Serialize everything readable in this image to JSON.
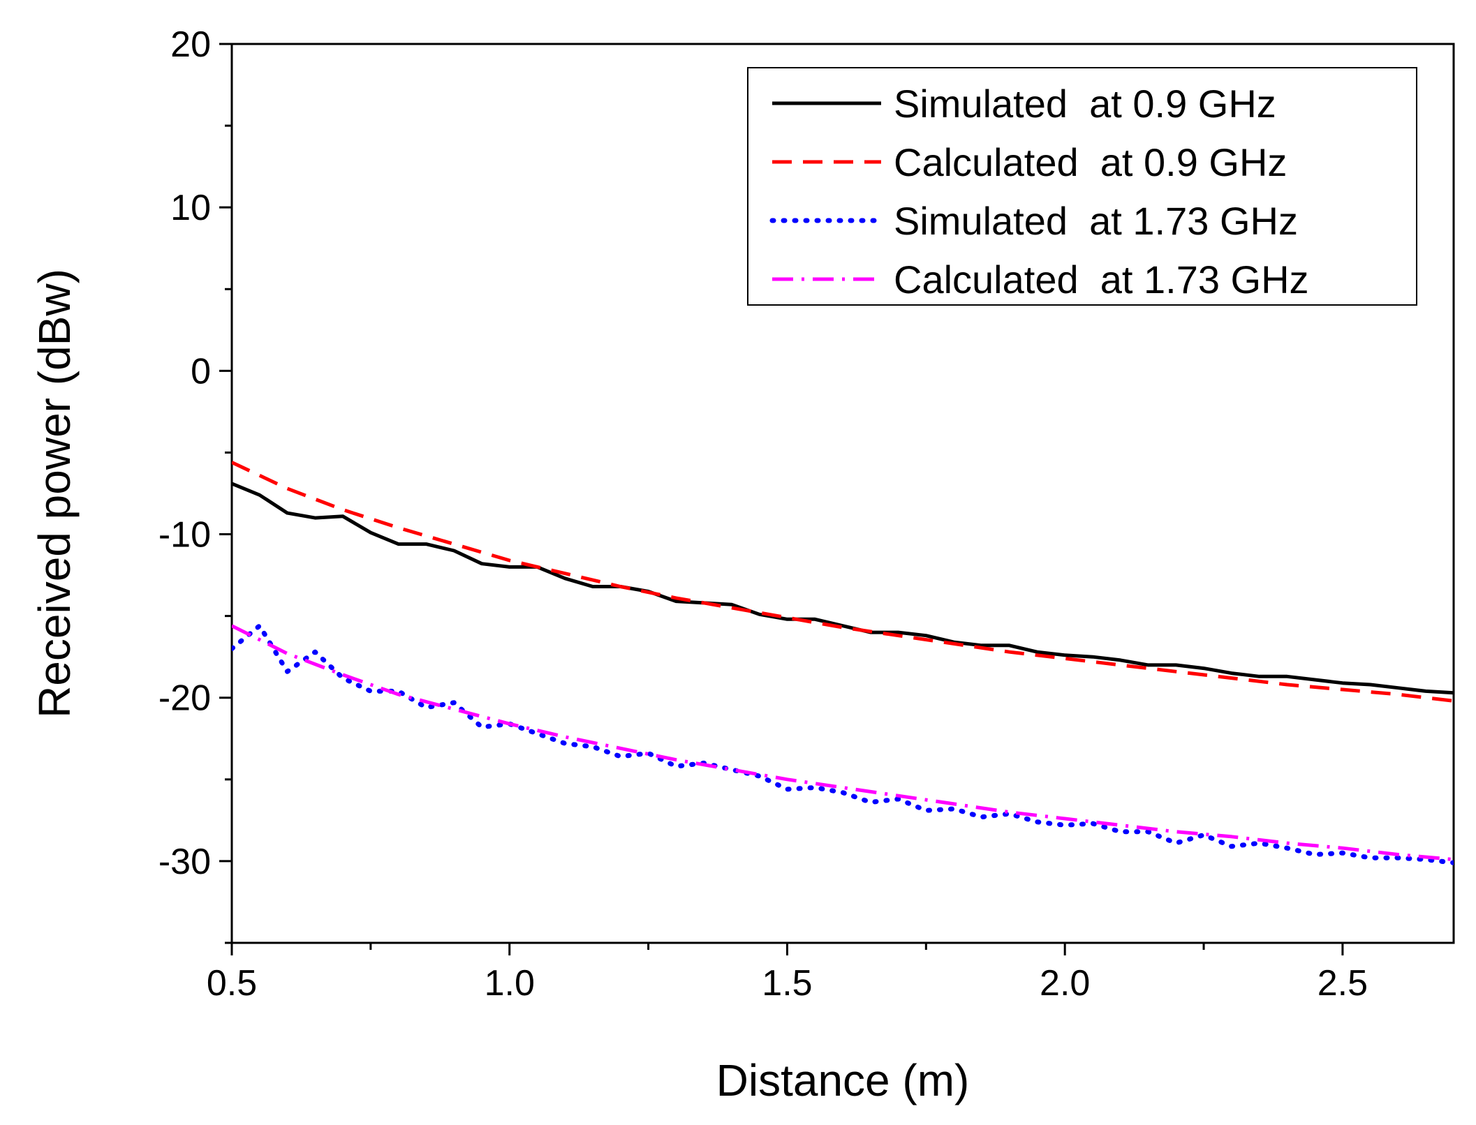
{
  "chart_data": {
    "type": "line",
    "title": "",
    "xlabel": "Distance (m)",
    "ylabel": "Received power (dBw)",
    "xlim": [
      0.5,
      2.7
    ],
    "ylim": [
      -35,
      20
    ],
    "xticks": [
      0.5,
      1.0,
      1.5,
      2.0,
      2.5
    ],
    "xtick_labels": [
      "0.5",
      "1.0",
      "1.5",
      "2.0",
      "2.5"
    ],
    "xminor": [
      0.75,
      1.25,
      1.75,
      2.25
    ],
    "yticks": [
      -30,
      -20,
      -10,
      0,
      10,
      20
    ],
    "ytick_labels": [
      "-30",
      "-20",
      "-10",
      "0",
      "10",
      "20"
    ],
    "yminor": [
      -35,
      -25,
      -15,
      -5,
      5,
      15
    ],
    "grid": false,
    "legend_position": "top-right",
    "series": [
      {
        "name": "Simulated  at 0.9 GHz",
        "color": "#000000",
        "style": "solid",
        "x": [
          0.5,
          0.55,
          0.6,
          0.65,
          0.7,
          0.75,
          0.8,
          0.85,
          0.9,
          0.95,
          1.0,
          1.05,
          1.1,
          1.15,
          1.2,
          1.25,
          1.3,
          1.35,
          1.4,
          1.45,
          1.5,
          1.55,
          1.6,
          1.65,
          1.7,
          1.75,
          1.8,
          1.85,
          1.9,
          1.95,
          2.0,
          2.05,
          2.1,
          2.15,
          2.2,
          2.25,
          2.3,
          2.35,
          2.4,
          2.45,
          2.5,
          2.55,
          2.6,
          2.65,
          2.7
        ],
        "y": [
          -6.9,
          -7.6,
          -8.7,
          -9.0,
          -8.9,
          -9.9,
          -10.6,
          -10.6,
          -11.0,
          -11.8,
          -12.0,
          -12.0,
          -12.7,
          -13.2,
          -13.2,
          -13.5,
          -14.1,
          -14.2,
          -14.3,
          -14.9,
          -15.2,
          -15.2,
          -15.6,
          -16.0,
          -16.0,
          -16.2,
          -16.6,
          -16.8,
          -16.8,
          -17.2,
          -17.4,
          -17.5,
          -17.7,
          -18.0,
          -18.0,
          -18.2,
          -18.5,
          -18.7,
          -18.7,
          -18.9,
          -19.1,
          -19.2,
          -19.4,
          -19.6,
          -19.7
        ]
      },
      {
        "name": "Calculated  at 0.9 GHz",
        "color": "#ff0000",
        "style": "dashed",
        "x": [
          0.5,
          0.6,
          0.7,
          0.8,
          0.9,
          1.0,
          1.1,
          1.2,
          1.3,
          1.4,
          1.5,
          1.6,
          1.7,
          1.8,
          1.9,
          2.0,
          2.1,
          2.2,
          2.3,
          2.4,
          2.5,
          2.6,
          2.7
        ],
        "y": [
          -5.6,
          -7.2,
          -8.5,
          -9.6,
          -10.6,
          -11.6,
          -12.4,
          -13.2,
          -13.9,
          -14.5,
          -15.1,
          -15.7,
          -16.2,
          -16.7,
          -17.2,
          -17.6,
          -18.0,
          -18.4,
          -18.8,
          -19.2,
          -19.5,
          -19.8,
          -20.2
        ]
      },
      {
        "name": "Simulated  at 1.73 GHz",
        "color": "#0000ff",
        "style": "dotted",
        "x": [
          0.5,
          0.55,
          0.6,
          0.65,
          0.7,
          0.75,
          0.8,
          0.85,
          0.9,
          0.95,
          1.0,
          1.05,
          1.1,
          1.15,
          1.2,
          1.25,
          1.3,
          1.35,
          1.4,
          1.45,
          1.5,
          1.55,
          1.6,
          1.65,
          1.7,
          1.75,
          1.8,
          1.85,
          1.9,
          1.95,
          2.0,
          2.05,
          2.1,
          2.15,
          2.2,
          2.25,
          2.3,
          2.35,
          2.4,
          2.45,
          2.5,
          2.55,
          2.6,
          2.65,
          2.7
        ],
        "y": [
          -17.0,
          -15.6,
          -18.4,
          -17.2,
          -18.8,
          -19.6,
          -19.6,
          -20.6,
          -20.3,
          -21.8,
          -21.6,
          -22.2,
          -22.8,
          -23.0,
          -23.6,
          -23.4,
          -24.2,
          -24.0,
          -24.4,
          -24.8,
          -25.6,
          -25.5,
          -25.8,
          -26.4,
          -26.2,
          -26.9,
          -26.8,
          -27.3,
          -27.1,
          -27.6,
          -27.8,
          -27.7,
          -28.2,
          -28.2,
          -28.9,
          -28.4,
          -29.1,
          -28.9,
          -29.2,
          -29.6,
          -29.5,
          -29.8,
          -29.8,
          -29.9,
          -30.1
        ]
      },
      {
        "name": "Calculated  at 1.73 GHz",
        "color": "#ff00ff",
        "style": "dashdot",
        "x": [
          0.5,
          0.6,
          0.7,
          0.8,
          0.9,
          1.0,
          1.1,
          1.2,
          1.3,
          1.4,
          1.5,
          1.6,
          1.7,
          1.8,
          1.9,
          2.0,
          2.1,
          2.2,
          2.3,
          2.4,
          2.5,
          2.6,
          2.7
        ],
        "y": [
          -15.6,
          -17.3,
          -18.6,
          -19.8,
          -20.7,
          -21.6,
          -22.4,
          -23.1,
          -23.8,
          -24.4,
          -25.0,
          -25.5,
          -26.0,
          -26.5,
          -27.0,
          -27.4,
          -27.8,
          -28.2,
          -28.5,
          -28.9,
          -29.2,
          -29.6,
          -29.9
        ]
      }
    ]
  }
}
